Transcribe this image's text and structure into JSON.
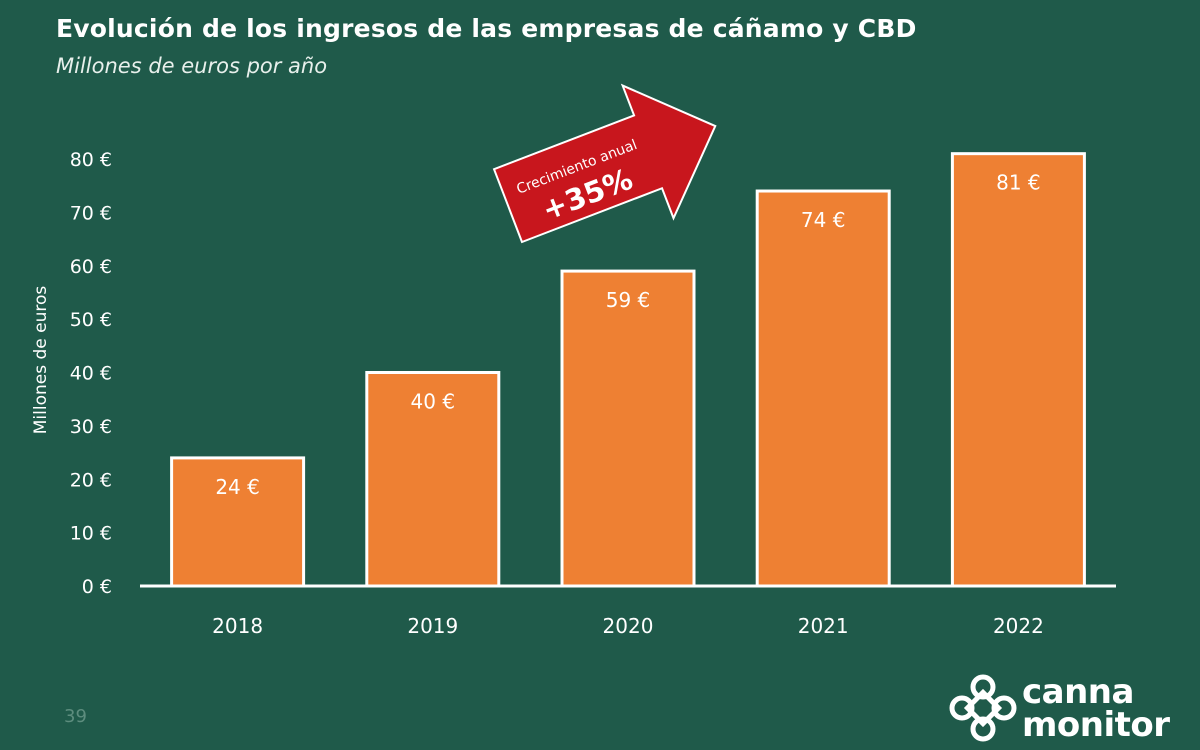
{
  "title": "Evolución de los ingresos de las empresas de cáñamo y CBD",
  "subtitle": "Millones de euros por año",
  "page_number": "39",
  "logo": {
    "line1": "canna",
    "line2": "monitor"
  },
  "annotation": {
    "line1": "Crecimiento anual",
    "line2": "+35%"
  },
  "colors": {
    "background": "#1f5a4a",
    "bar_fill": "#ee8033",
    "bar_border": "#ffffff",
    "text": "#ffffff",
    "arrow": "#c8161d"
  },
  "chart_data": {
    "type": "bar",
    "title": "Evolución de los ingresos de las empresas de cáñamo y CBD",
    "subtitle": "Millones de euros por año",
    "xlabel": "",
    "ylabel": "Millones de euros",
    "categories": [
      "2018",
      "2019",
      "2020",
      "2021",
      "2022"
    ],
    "values": [
      24,
      40,
      59,
      74,
      81
    ],
    "data_labels": [
      "24 €",
      "40 €",
      "59 €",
      "74 €",
      "81 €"
    ],
    "y_ticks": [
      0,
      10,
      20,
      30,
      40,
      50,
      60,
      70,
      80
    ],
    "y_tick_labels": [
      "0 €",
      "10 €",
      "20 €",
      "30 €",
      "40 €",
      "50 €",
      "60 €",
      "70 €",
      "80 €"
    ],
    "ylim": [
      0,
      80
    ],
    "grid": false,
    "legend": "none"
  }
}
